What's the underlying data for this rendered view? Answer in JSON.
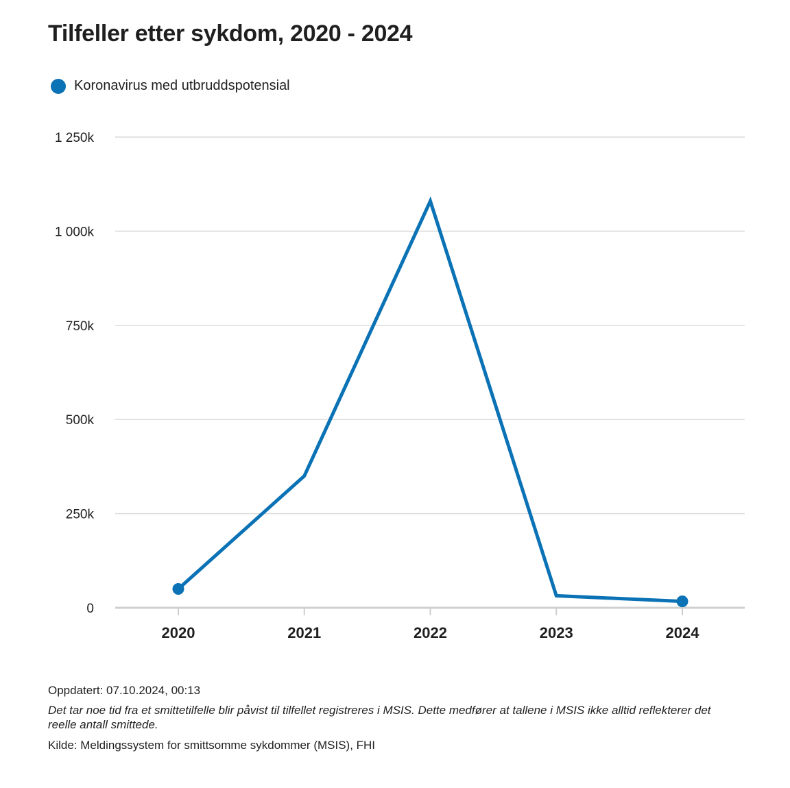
{
  "chart_data": {
    "type": "line",
    "title": "Tilfeller etter sykdom, 2020 - 2024",
    "categories": [
      "2020",
      "2021",
      "2022",
      "2023",
      "2024"
    ],
    "series": [
      {
        "name": "Koronavirus med utbruddspotensial",
        "color": "#0a72b5",
        "values": [
          50000,
          350000,
          1080000,
          32000,
          17000
        ]
      }
    ],
    "yticks": [
      0,
      250000,
      500000,
      750000,
      1000000,
      1250000
    ],
    "ytick_labels": [
      "0",
      "250k",
      "500k",
      "750k",
      "1 000k",
      "1 250k"
    ],
    "ylim": [
      0,
      1250000
    ],
    "grid": true,
    "legend_position": "top-left",
    "markers_on": [
      "2020",
      "2024"
    ]
  },
  "footer": {
    "updated": "Oppdatert: 07.10.2024, 00:13",
    "note": "Det tar noe tid fra et smittetilfelle blir påvist til tilfellet registreres i MSIS. Dette medfører at tallene i MSIS ikke alltid reflekterer det reelle antall smittede.",
    "source": "Kilde: Meldingssystem for smittsomme sykdommer (MSIS), FHI"
  }
}
